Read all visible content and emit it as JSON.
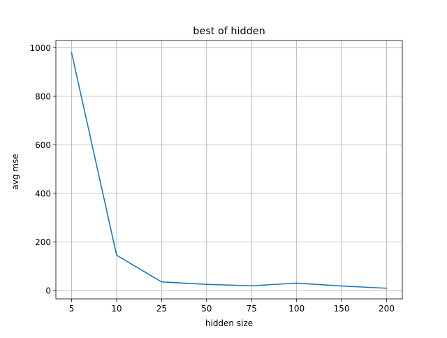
{
  "chart_data": {
    "type": "line",
    "title": "best of hidden",
    "xlabel": "hidden size",
    "ylabel": "avg mse",
    "categories": [
      "5",
      "10",
      "25",
      "50",
      "75",
      "100",
      "150",
      "200"
    ],
    "series": [
      {
        "values": [
          980,
          145,
          35,
          25,
          19,
          30,
          18,
          9
        ],
        "color": "#1f77b4"
      }
    ],
    "yticks": [
      0,
      200,
      400,
      600,
      800,
      1000
    ],
    "ylim": [
      -35,
      1030
    ],
    "grid": true,
    "grid_color": "#b0b0b0"
  }
}
